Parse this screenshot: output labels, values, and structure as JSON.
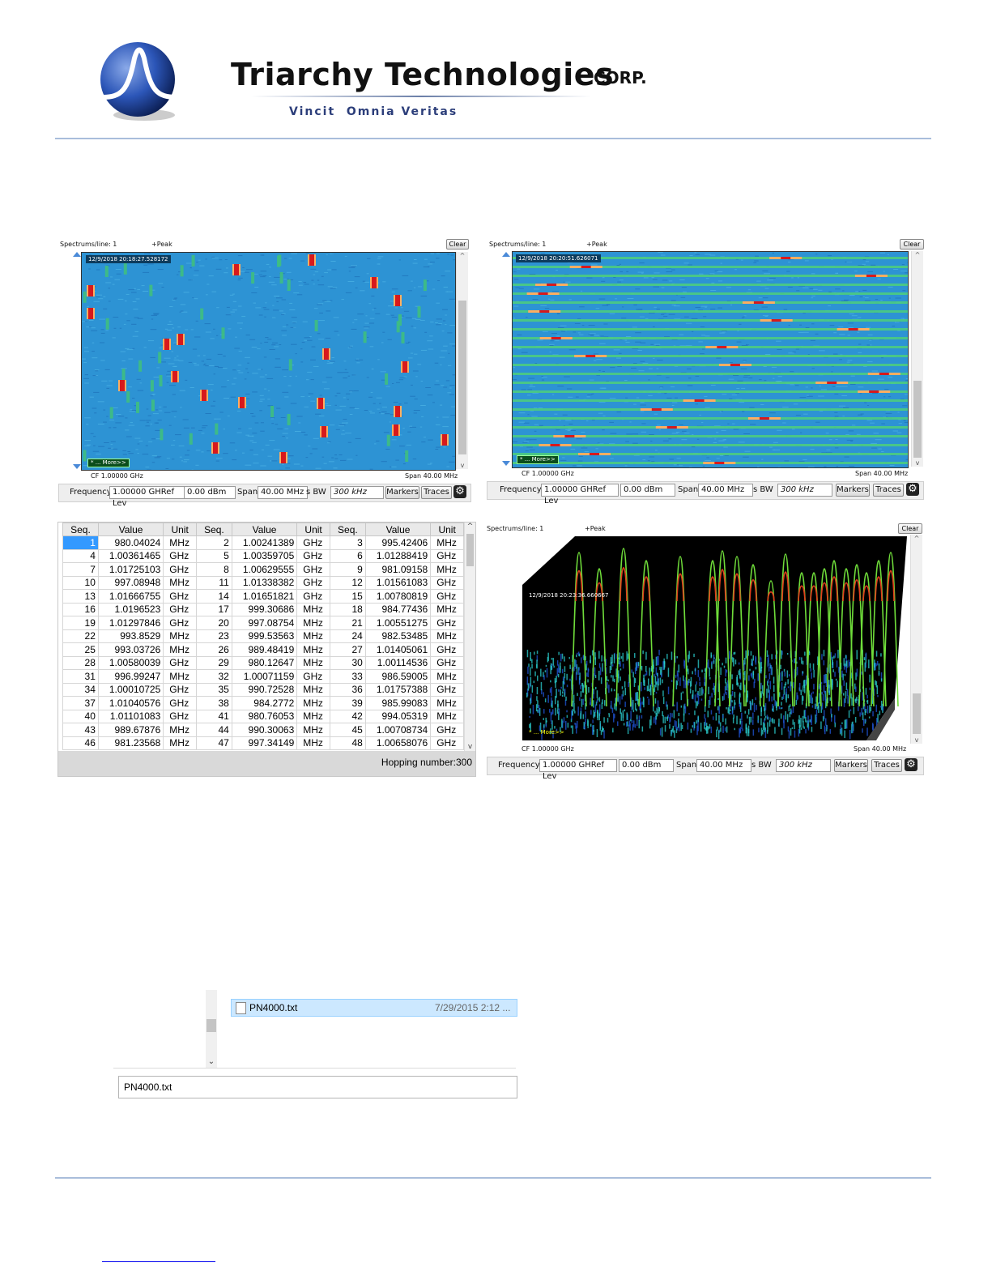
{
  "header": {
    "company": "Triarchy Technologies",
    "corp": "CORP.",
    "tagline": "Vincit  Omnia Veritas"
  },
  "colors": {
    "rule": "#a9bddb",
    "waterfall_bg": "#2a8fd1",
    "burst_hot": "#d7191c",
    "burst_warm": "#fdae61",
    "selection": "#3399ff",
    "link": "#0000ee"
  },
  "panel1": {
    "spectrums_label": "Spectrums/line: 1",
    "mode": "+Peak",
    "clear": "Clear",
    "timestamp": "12/9/2018 20:18:27.528172",
    "more": "* ... More>>",
    "cf_label": "CF  1.00000 GHz",
    "span_label": "Span  40.00 MHz",
    "controls": {
      "frequency_label": "Frequency",
      "frequency_value": "1.00000 GHRef Lev",
      "ref_value": "0.00 dBm",
      "span_label": "Span",
      "span_value": "40.00 MHz",
      "bw_label": "s BW",
      "bw_value": "300 kHz",
      "markers": "Markers",
      "traces": "Traces",
      "settings_icon": "gear-icon"
    }
  },
  "panel2": {
    "spectrums_label": "Spectrums/line: 1",
    "mode": "+Peak",
    "clear": "Clear",
    "timestamp": "12/9/2018 20:20:51.626071",
    "more": "* ... More>>",
    "cf_label": "CF  1.00000 GHz",
    "span_label": "Span  40.00 MHz",
    "controls": {
      "frequency_label": "Frequency",
      "frequency_value": "1.00000 GHRef Lev",
      "ref_value": "0.00 dBm",
      "span_label": "Span",
      "span_value": "40.00 MHz",
      "bw_label": "s BW",
      "bw_value": "300 kHz",
      "markers": "Markers",
      "traces": "Traces",
      "settings_icon": "gear-icon"
    }
  },
  "panel4": {
    "spectrums_label": "Spectrums/line: 1",
    "mode": "+Peak",
    "clear": "Clear",
    "timestamp": "12/9/2018 20:23:36.660667",
    "more": "* ... More>>",
    "cf_label": "CF  1.00000 GHz",
    "span_label": "Span  40.00 MHz",
    "controls": {
      "frequency_label": "Frequency",
      "frequency_value": "1.00000 GHRef Lev",
      "ref_value": "0.00 dBm",
      "span_label": "Span",
      "span_value": "40.00 MHz",
      "bw_label": "s BW",
      "bw_value": "300 kHz",
      "markers": "Markers",
      "traces": "Traces",
      "settings_icon": "gear-icon"
    }
  },
  "hop_table": {
    "headers": [
      "Seq.",
      "Value",
      "Unit",
      "Seq.",
      "Value",
      "Unit",
      "Seq.",
      "Value",
      "Unit"
    ],
    "rows": [
      [
        "1",
        "980.04024",
        "MHz",
        "2",
        "1.00241389",
        "GHz",
        "3",
        "995.42406",
        "MHz"
      ],
      [
        "4",
        "1.00361465",
        "GHz",
        "5",
        "1.00359705",
        "GHz",
        "6",
        "1.01288419",
        "GHz"
      ],
      [
        "7",
        "1.01725103",
        "GHz",
        "8",
        "1.00629555",
        "GHz",
        "9",
        "981.09158",
        "MHz"
      ],
      [
        "10",
        "997.08948",
        "MHz",
        "11",
        "1.01338382",
        "GHz",
        "12",
        "1.01561083",
        "GHz"
      ],
      [
        "13",
        "1.01666755",
        "GHz",
        "14",
        "1.01651821",
        "GHz",
        "15",
        "1.00780819",
        "GHz"
      ],
      [
        "16",
        "1.0196523",
        "GHz",
        "17",
        "999.30686",
        "MHz",
        "18",
        "984.77436",
        "MHz"
      ],
      [
        "19",
        "1.01297846",
        "GHz",
        "20",
        "997.08754",
        "MHz",
        "21",
        "1.00551275",
        "GHz"
      ],
      [
        "22",
        "993.8529",
        "MHz",
        "23",
        "999.53563",
        "MHz",
        "24",
        "982.53485",
        "MHz"
      ],
      [
        "25",
        "993.03726",
        "MHz",
        "26",
        "989.48419",
        "MHz",
        "27",
        "1.01405061",
        "GHz"
      ],
      [
        "28",
        "1.00580039",
        "GHz",
        "29",
        "980.12647",
        "MHz",
        "30",
        "1.00114536",
        "GHz"
      ],
      [
        "31",
        "996.99247",
        "MHz",
        "32",
        "1.00071159",
        "GHz",
        "33",
        "986.59005",
        "MHz"
      ],
      [
        "34",
        "1.00010725",
        "GHz",
        "35",
        "990.72528",
        "MHz",
        "36",
        "1.01757388",
        "GHz"
      ],
      [
        "37",
        "1.01040576",
        "GHz",
        "38",
        "984.2772",
        "MHz",
        "39",
        "985.99083",
        "MHz"
      ],
      [
        "40",
        "1.01101083",
        "GHz",
        "41",
        "980.76053",
        "MHz",
        "42",
        "994.05319",
        "MHz"
      ],
      [
        "43",
        "989.67876",
        "MHz",
        "44",
        "990.30063",
        "MHz",
        "45",
        "1.00708734",
        "GHz"
      ],
      [
        "46",
        "981.23568",
        "MHz",
        "47",
        "997.34149",
        "MHz",
        "48",
        "1.00658076",
        "GHz"
      ]
    ],
    "footer": "Hopping number:300"
  },
  "file_dialog": {
    "file_name": "PN4000.txt",
    "file_date": "7/29/2015 2:12 ...",
    "file_icon": "document-icon",
    "filename_field": "PN4000.txt"
  }
}
